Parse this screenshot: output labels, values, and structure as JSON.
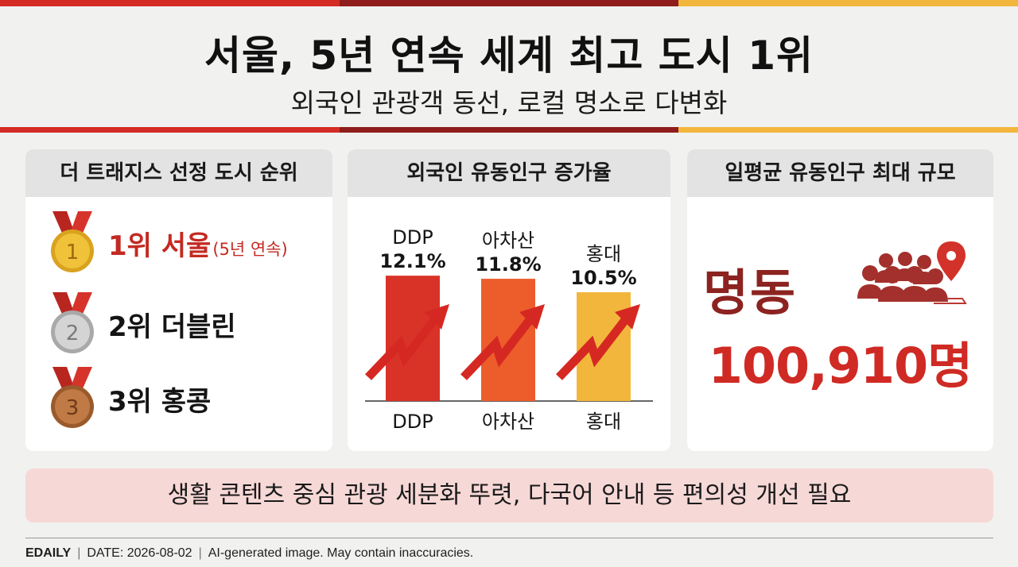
{
  "header": {
    "title": "서울, 5년 연속 세계 최고 도시 1위",
    "subtitle": "외국인 관광객 동선, 로컬 명소로 다변화"
  },
  "colors": {
    "red": "#d52b25",
    "dark_red": "#8e1d1b",
    "orange": "#ec5d2b",
    "yellow": "#f2b63c",
    "gold_medal": "#f0c23a",
    "silver_medal": "#c9c9c9",
    "bronze_medal": "#c07a45"
  },
  "ranking": {
    "heading": "더 트래지스 선정 도시 순위",
    "items": [
      {
        "medal_icon": "gold-medal-icon",
        "medal_number": "1",
        "label": "1위 서울",
        "note": "(5년 연속)"
      },
      {
        "medal_icon": "silver-medal-icon",
        "medal_number": "2",
        "label": "2위 더블린",
        "note": ""
      },
      {
        "medal_icon": "bronze-medal-icon",
        "medal_number": "3",
        "label": "3위 홍콩",
        "note": ""
      }
    ]
  },
  "chart_data": {
    "type": "bar",
    "title": "외국인 유동인구 증가율",
    "categories": [
      "DDP",
      "아차산",
      "홍대"
    ],
    "values": [
      12.1,
      11.8,
      10.5
    ],
    "value_labels": [
      "12.1%",
      "11.8%",
      "10.5%"
    ],
    "colors": [
      "#d93328",
      "#ec5d2b",
      "#f2b63c"
    ],
    "ylim": [
      0,
      12.8
    ],
    "xlabel": "",
    "ylabel": "",
    "grid": false,
    "legend": "none",
    "annotation_icon": "rising-arrow-icon"
  },
  "peak": {
    "heading": "일평균 유동인구 최대 규모",
    "place": "명동",
    "value": "100,910명",
    "icon": "crowd-location-pin-icon"
  },
  "banner": {
    "text": "생활 콘텐츠 중심 관광 세분화 뚜렷, 다국어 안내 등 편의성 개선 필요"
  },
  "footer": {
    "brand": "EDAILY",
    "date": "DATE: 2026-08-02",
    "disclaimer": "AI-generated image. May contain inaccuracies."
  }
}
